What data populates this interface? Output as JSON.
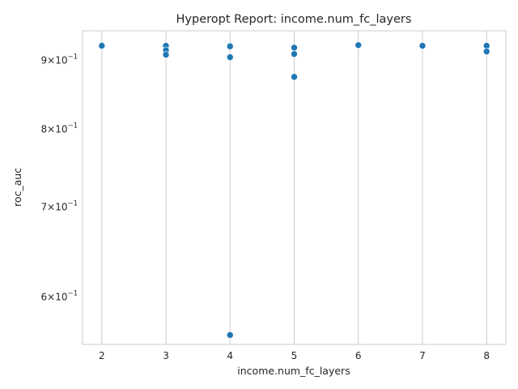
{
  "chart_data": {
    "type": "scatter",
    "title": "Hyperopt Report: income.num_fc_layers",
    "xlabel": "income.num_fc_layers",
    "ylabel": "roc_auc",
    "x_ticks": [
      2,
      3,
      4,
      5,
      6,
      7,
      8
    ],
    "x_tick_labels": [
      "2",
      "3",
      "4",
      "5",
      "6",
      "7",
      "8"
    ],
    "y_scale": "log",
    "y_ticks": [
      0.6,
      0.7,
      0.8,
      0.9
    ],
    "y_tick_labels": [
      {
        "base": "6",
        "mult": "×",
        "pow": "10",
        "exp": "−1"
      },
      {
        "base": "7",
        "mult": "×",
        "pow": "10",
        "exp": "−1"
      },
      {
        "base": "8",
        "mult": "×",
        "pow": "10",
        "exp": "−1"
      },
      {
        "base": "9",
        "mult": "×",
        "pow": "10",
        "exp": "−1"
      }
    ],
    "xlim": [
      1.7,
      8.3
    ],
    "ylim": [
      0.553,
      0.947
    ],
    "grid": "vertical",
    "color": "#1f77b4",
    "points": [
      {
        "x": 2,
        "y": 0.924
      },
      {
        "x": 2,
        "y": 0.923
      },
      {
        "x": 3,
        "y": 0.923
      },
      {
        "x": 3,
        "y": 0.916
      },
      {
        "x": 3,
        "y": 0.909
      },
      {
        "x": 4,
        "y": 0.923
      },
      {
        "x": 4,
        "y": 0.922
      },
      {
        "x": 4,
        "y": 0.905
      },
      {
        "x": 4,
        "y": 0.562
      },
      {
        "x": 5,
        "y": 0.92
      },
      {
        "x": 5,
        "y": 0.91
      },
      {
        "x": 5,
        "y": 0.875
      },
      {
        "x": 6,
        "y": 0.924
      },
      {
        "x": 7,
        "y": 0.923
      },
      {
        "x": 8,
        "y": 0.923
      },
      {
        "x": 8,
        "y": 0.914
      }
    ]
  }
}
